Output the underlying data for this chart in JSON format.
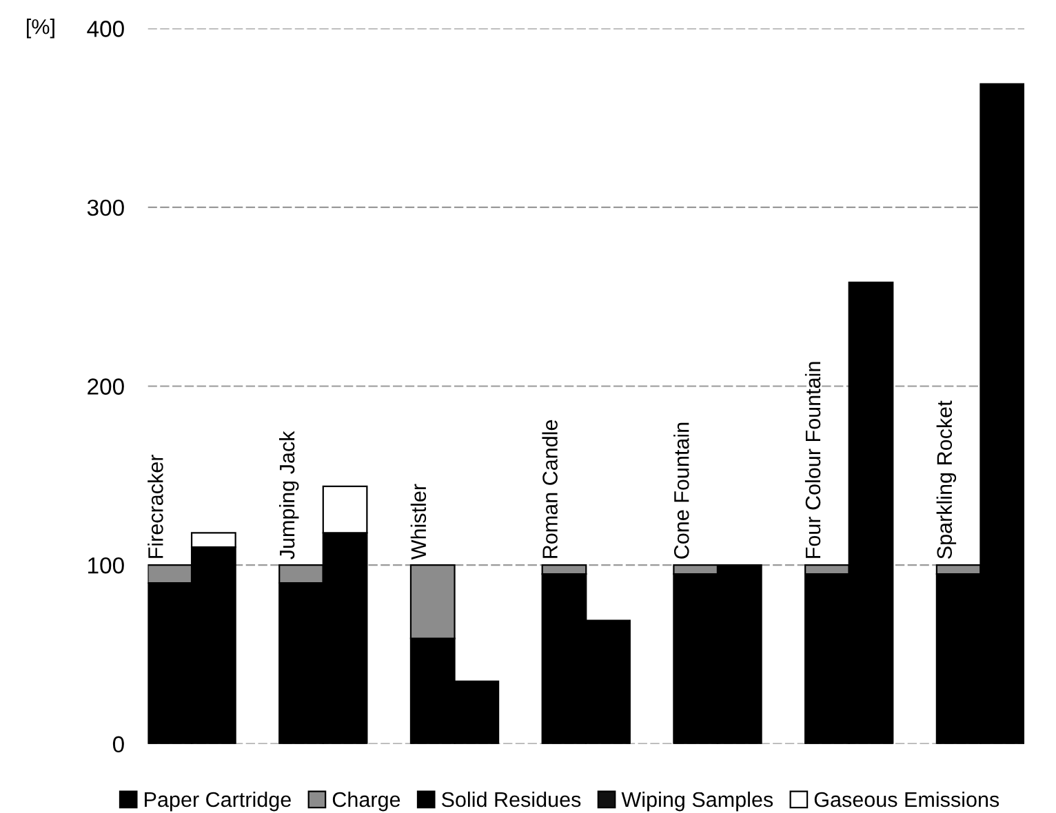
{
  "chart_data": {
    "type": "bar",
    "stacked": true,
    "ylabel": "[%]",
    "categories": [
      "Firecracker",
      null,
      null,
      "Jumping Jack",
      null,
      null,
      "Whistler",
      null,
      null,
      "Roman Candle",
      null,
      null,
      "Cone Fountain",
      null,
      null,
      "Four Colour Fountain",
      null,
      null,
      "Sparkling Rocket",
      null
    ],
    "series": [
      {
        "name": "Paper Cartridge",
        "color": "#000000",
        "values": [
          90,
          null,
          null,
          90,
          null,
          null,
          59,
          null,
          null,
          95,
          null,
          null,
          95,
          null,
          null,
          95,
          null,
          null,
          95,
          null
        ]
      },
      {
        "name": "Charge",
        "color": "#8c8c8c",
        "values": [
          10,
          null,
          null,
          10,
          null,
          null,
          41,
          null,
          null,
          5,
          null,
          null,
          5,
          null,
          null,
          5,
          null,
          null,
          5,
          null
        ]
      },
      {
        "name": "Solid Residues",
        "color": "#000000",
        "values": [
          null,
          110,
          null,
          null,
          118,
          null,
          null,
          35,
          null,
          null,
          69,
          null,
          null,
          100,
          null,
          null,
          258,
          null,
          null,
          369
        ]
      },
      {
        "name": "Wiping Samples",
        "color": "#111111",
        "values": [
          null,
          null,
          null,
          null,
          null,
          null,
          null,
          null,
          null,
          null,
          null,
          null,
          null,
          null,
          null,
          null,
          null,
          null,
          null,
          null
        ]
      },
      {
        "name": "Gaseous Emissions",
        "color": "#ffffff",
        "values": [
          null,
          8,
          null,
          null,
          26,
          null,
          null,
          null,
          null,
          null,
          null,
          null,
          null,
          null,
          null,
          null,
          null,
          null,
          null,
          null
        ]
      }
    ],
    "ylim": [
      0,
      400
    ],
    "yticks": [
      0,
      100,
      200,
      300,
      400
    ],
    "grid": "y",
    "legend": "bottom"
  }
}
